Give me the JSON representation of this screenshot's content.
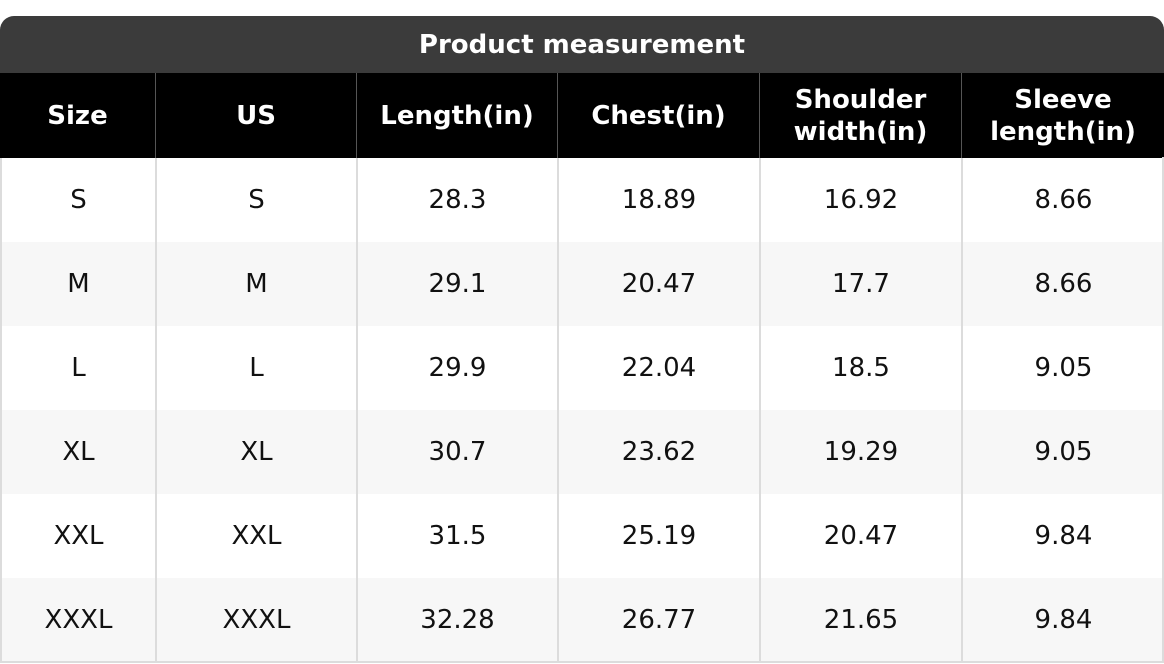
{
  "title": "Product measurement",
  "table": {
    "header": [
      "Size",
      "US",
      "Length(in)",
      "Chest(in)",
      "Shoulder width(in)",
      "Sleeve length(in)"
    ],
    "rows": [
      [
        "S",
        "S",
        "28.3",
        "18.89",
        "16.92",
        "8.66"
      ],
      [
        "M",
        "M",
        "29.1",
        "20.47",
        "17.7",
        "8.66"
      ],
      [
        "L",
        "L",
        "29.9",
        "22.04",
        "18.5",
        "9.05"
      ],
      [
        "XL",
        "XL",
        "30.7",
        "23.62",
        "19.29",
        "9.05"
      ],
      [
        "XXL",
        "XXL",
        "31.5",
        "25.19",
        "20.47",
        "9.84"
      ],
      [
        "XXXL",
        "XXXL",
        "32.28",
        "26.77",
        "21.65",
        "9.84"
      ]
    ]
  }
}
